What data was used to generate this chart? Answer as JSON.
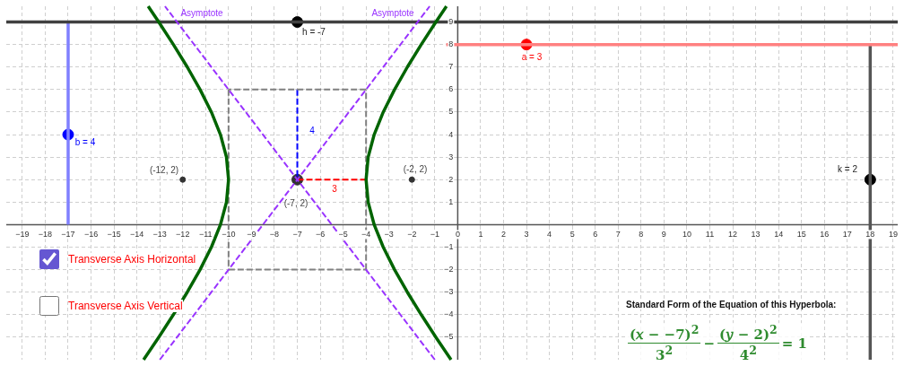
{
  "chart_data": {
    "type": "line",
    "xlim": [
      -19.7,
      19.2
    ],
    "ylim": [
      -6,
      9.7
    ],
    "xticks": [
      -19,
      -18,
      -17,
      -16,
      -15,
      -14,
      -13,
      -12,
      -11,
      -10,
      -9,
      -8,
      -7,
      -6,
      -5,
      -4,
      -3,
      -2,
      -1,
      0,
      1,
      2,
      3,
      4,
      5,
      6,
      7,
      8,
      9,
      10,
      11,
      12,
      13,
      14,
      15,
      16,
      17,
      18,
      19
    ],
    "yticks": [
      -5,
      -4,
      -3,
      -2,
      -1,
      1,
      2,
      3,
      4,
      5,
      6,
      7,
      8,
      9
    ],
    "grid": true,
    "legend": false,
    "series": [
      {
        "color": "#006400",
        "line_style": "solid",
        "marker": "none",
        "x": [
          -13.708,
          -13.047,
          -12.408,
          -11.802,
          -11.243,
          -10.75,
          -10.354,
          -10.092,
          -10,
          -10.092,
          -10.354,
          -10.75,
          -11.243,
          -11.802,
          -12.408,
          -13.047,
          -13.508
        ],
        "values": [
          -6,
          -5,
          -4,
          -3,
          -2,
          -1,
          0,
          1,
          2,
          3,
          4,
          5,
          6,
          7,
          8,
          9,
          9.7
        ]
      },
      {
        "color": "#006400",
        "line_style": "solid",
        "marker": "none",
        "x": [
          -0.292,
          -0.953,
          -1.592,
          -2.198,
          -2.757,
          -3.25,
          -3.646,
          -3.908,
          -4,
          -3.908,
          -3.646,
          -3.25,
          -2.757,
          -2.198,
          -1.592,
          -0.953,
          -0.492
        ],
        "values": [
          -6,
          -5,
          -4,
          -3,
          -2,
          -1,
          0,
          1,
          2,
          3,
          4,
          5,
          6,
          7,
          8,
          9,
          9.7
        ]
      },
      {
        "color": "#9933ff",
        "line_style": "dashed",
        "marker": "none",
        "x": [
          -13,
          -1.225
        ],
        "values": [
          -6,
          9.7
        ]
      },
      {
        "color": "#9933ff",
        "line_style": "dashed",
        "marker": "none",
        "x": [
          -1,
          -12.775
        ],
        "values": [
          -6,
          9.7
        ]
      },
      {
        "color": "#808080",
        "line_style": "dashed",
        "marker": "none",
        "x": [
          -10,
          -4
        ],
        "values": [
          -2,
          -2
        ]
      },
      {
        "color": "#808080",
        "line_style": "dashed",
        "marker": "none",
        "x": [
          -4,
          -4
        ],
        "values": [
          -2,
          6
        ]
      },
      {
        "color": "#808080",
        "line_style": "dashed",
        "marker": "none",
        "x": [
          -4,
          -10
        ],
        "values": [
          6,
          6
        ]
      },
      {
        "color": "#808080",
        "line_style": "dashed",
        "marker": "none",
        "x": [
          -10,
          -10
        ],
        "values": [
          6,
          -2
        ]
      },
      {
        "color": "#0000ff",
        "line_style": "dashed",
        "marker": "none",
        "x": [
          -7,
          -7
        ],
        "values": [
          6,
          2
        ]
      },
      {
        "color": "#ff0000",
        "line_style": "dashed",
        "marker": "none",
        "x": [
          -7,
          -4
        ],
        "values": [
          2,
          2
        ]
      },
      {
        "color": "#404040",
        "line_style": "solid",
        "marker": "none",
        "x": [
          -19.7,
          19.2
        ],
        "values": [
          9,
          9
        ]
      },
      {
        "color": "#8080ff",
        "line_style": "solid",
        "marker": "none",
        "x": [
          -17,
          -17
        ],
        "values": [
          0,
          9
        ]
      },
      {
        "color": "#ff8080",
        "line_style": "solid",
        "marker": "none",
        "x": [
          -0.5,
          19.2
        ],
        "values": [
          8,
          8
        ]
      },
      {
        "color": "#555555",
        "line_style": "solid",
        "marker": "none",
        "x": [
          18,
          18
        ],
        "values": [
          -6,
          8
        ]
      },
      {
        "type": "scatter",
        "color": "#333333",
        "marker": "circle",
        "x": [
          -12,
          -2
        ],
        "values": [
          2,
          2
        ]
      },
      {
        "type": "scatter",
        "marker": "circle",
        "x": [
          -7,
          -17,
          3,
          -7,
          18
        ],
        "values": [
          2,
          4,
          8,
          9,
          2
        ],
        "colors": [
          "#333333",
          "#0000ff",
          "#ff0000",
          "#000000",
          "#000000"
        ]
      }
    ],
    "annotations": [
      "Asymptote",
      "Asymptote",
      "h = -7",
      "a = 3",
      "b = 4",
      "k = 2",
      "(-12, 2)",
      "(-2, 2)",
      "(-7, 2)",
      "3",
      "4",
      "Transverse Axis Horizontal",
      "Transverse Axis Vertical",
      "Standard Form of the Equation of this Hyperbola:",
      "(𝑥 − −7)$^{2}$",
      "3$^{2}$",
      "−",
      "(𝑦 − 2)$^{2}$",
      "4$^{2}$",
      "= 1"
    ]
  }
}
